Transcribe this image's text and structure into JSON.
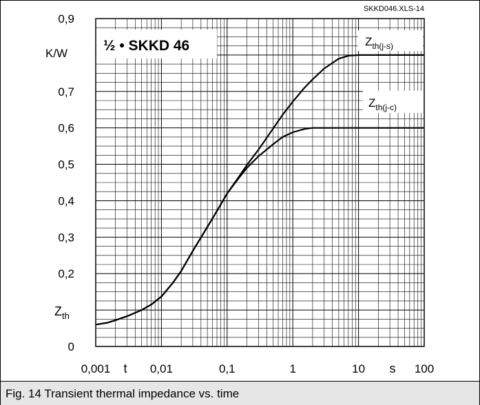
{
  "file_label": "SKKD046.XLS-14",
  "caption": "Fig. 14 Transient thermal impedance vs. time",
  "chart_data": {
    "type": "line",
    "title": "½ • SKKD 46",
    "xscale": "log",
    "xlim": [
      0.001,
      100
    ],
    "ylim": [
      0,
      0.9
    ],
    "xticks": [
      "0,001",
      "0,01",
      "0,1",
      "1",
      "10",
      "100"
    ],
    "yticks": [
      "0",
      "0,2",
      "0,3",
      "0,4",
      "0,5",
      "0,6",
      "0,7",
      "0,9"
    ],
    "xlabel_parts": [
      "t",
      "s"
    ],
    "ylabel_unit": "K/W",
    "ylabel_main": "Z",
    "ylabel_sub": "th",
    "grid": true,
    "series": [
      {
        "name_main": "Z",
        "name_sub": "th(j-s)",
        "x": [
          0.001,
          0.0015,
          0.002,
          0.003,
          0.005,
          0.007,
          0.01,
          0.015,
          0.02,
          0.03,
          0.05,
          0.07,
          0.1,
          0.15,
          0.2,
          0.3,
          0.5,
          0.7,
          1,
          1.5,
          2,
          3,
          5,
          7,
          10,
          15,
          20,
          50,
          100
        ],
        "y": [
          0.06,
          0.065,
          0.072,
          0.083,
          0.1,
          0.115,
          0.137,
          0.175,
          0.207,
          0.262,
          0.328,
          0.372,
          0.42,
          0.465,
          0.498,
          0.54,
          0.598,
          0.636,
          0.672,
          0.71,
          0.733,
          0.763,
          0.79,
          0.798,
          0.8,
          0.8,
          0.8,
          0.8,
          0.8
        ]
      },
      {
        "name_main": "Z",
        "name_sub": "th(j-c)",
        "x": [
          0.001,
          0.0015,
          0.002,
          0.003,
          0.005,
          0.007,
          0.01,
          0.015,
          0.02,
          0.03,
          0.05,
          0.07,
          0.1,
          0.15,
          0.2,
          0.3,
          0.5,
          0.7,
          1,
          1.5,
          2,
          3,
          5,
          7,
          10,
          15,
          20,
          50,
          100
        ],
        "y": [
          0.06,
          0.065,
          0.072,
          0.083,
          0.1,
          0.115,
          0.137,
          0.175,
          0.207,
          0.262,
          0.328,
          0.372,
          0.42,
          0.462,
          0.49,
          0.522,
          0.555,
          0.575,
          0.588,
          0.597,
          0.6,
          0.6,
          0.6,
          0.6,
          0.6,
          0.6,
          0.6,
          0.6,
          0.6
        ]
      }
    ]
  }
}
